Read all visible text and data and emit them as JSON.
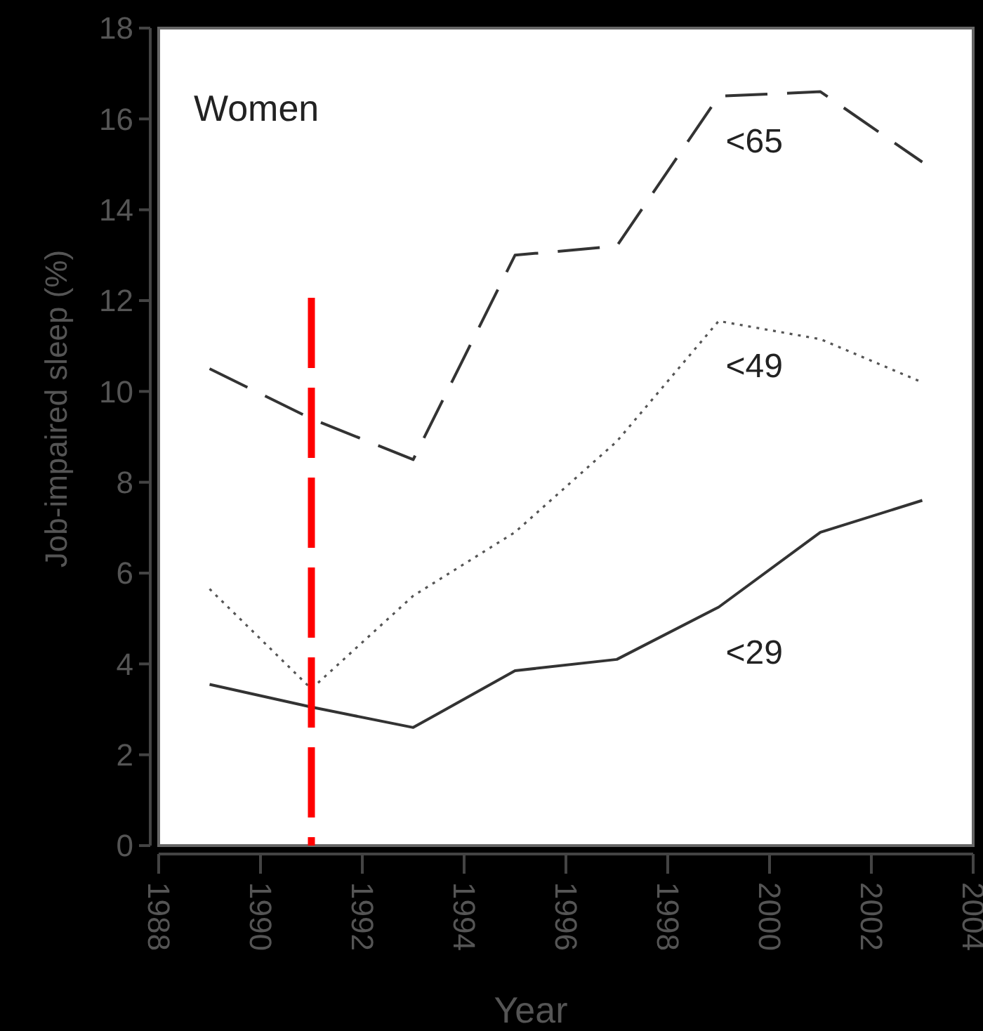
{
  "chart_data": {
    "type": "line",
    "xlabel": "Year",
    "ylabel": "Job-impaired sleep (%)",
    "annotations": [
      "Women"
    ],
    "x": [
      1989,
      1991,
      1993,
      1995,
      1997,
      1999,
      2001,
      2003
    ],
    "series": [
      {
        "name": "<65",
        "color": "#333333",
        "line_style": "dashed",
        "values": [
          10.5,
          9.4,
          8.5,
          13.0,
          13.2,
          16.5,
          16.6,
          15.05
        ]
      },
      {
        "name": "<49",
        "color": "#555555",
        "line_style": "dotted",
        "values": [
          5.65,
          3.45,
          5.5,
          6.9,
          8.9,
          11.55,
          11.15,
          10.2
        ]
      },
      {
        "name": "<29",
        "color": "#333333",
        "line_style": "solid",
        "values": [
          3.55,
          3.05,
          2.6,
          3.85,
          4.1,
          5.25,
          6.9,
          7.6
        ]
      }
    ],
    "xlim": [
      1988,
      2004
    ],
    "xticks": [
      1988,
      1990,
      1992,
      1994,
      1996,
      1998,
      2000,
      2002,
      2004
    ],
    "ylim": [
      0,
      18
    ],
    "yticks": [
      0,
      2,
      4,
      6,
      8,
      10,
      12,
      14,
      16,
      18
    ],
    "ref_lines": [
      {
        "axis": "x",
        "value": 1991,
        "color": "#ff0000",
        "line_style": "dashed"
      }
    ],
    "grid": false,
    "marker": "none"
  }
}
